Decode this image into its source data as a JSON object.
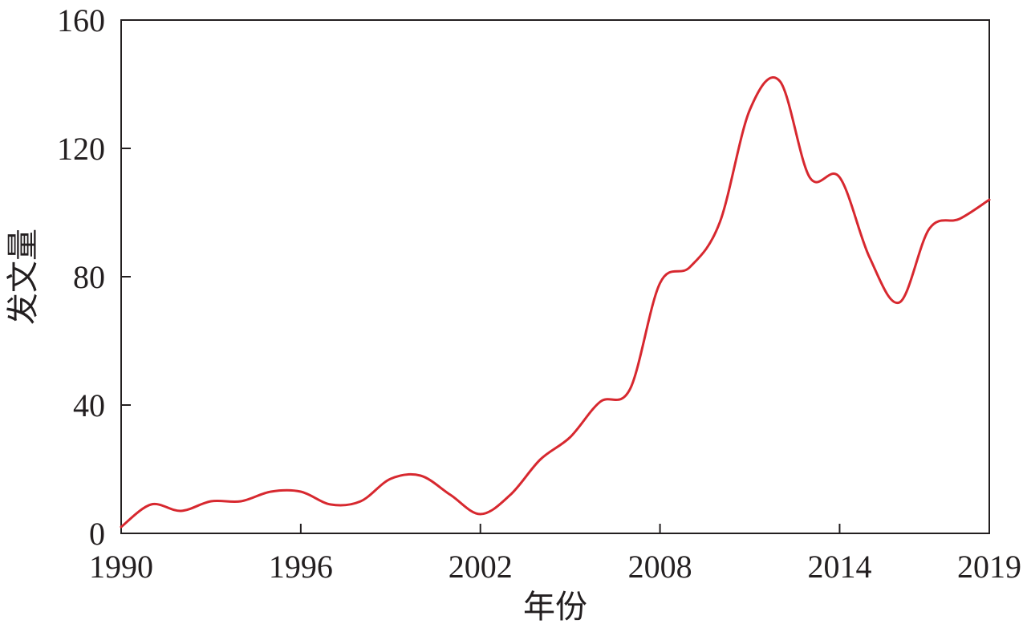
{
  "chart_data": {
    "type": "line",
    "xlabel": "年份",
    "ylabel": "发文量",
    "xlim": [
      1990,
      2019
    ],
    "ylim": [
      0,
      160
    ],
    "x_ticks": [
      1990,
      1996,
      2002,
      2008,
      2014,
      2019
    ],
    "y_ticks": [
      0,
      40,
      80,
      120,
      160
    ],
    "grid": false,
    "legend": "none",
    "series": [
      {
        "color": "#d7282f",
        "x": [
          1990,
          1991,
          1992,
          1993,
          1994,
          1995,
          1996,
          1997,
          1998,
          1999,
          2000,
          2001,
          2002,
          2003,
          2004,
          2005,
          2006,
          2007,
          2008,
          2009,
          2010,
          2011,
          2012,
          2013,
          2014,
          2015,
          2016,
          2017,
          2018,
          2019
        ],
        "y": [
          2,
          9,
          7,
          10,
          10,
          13,
          13,
          9,
          10,
          17,
          18,
          12,
          6,
          12,
          23,
          30,
          41,
          45,
          78,
          83,
          97,
          132,
          141,
          111,
          111,
          86,
          72,
          95,
          98,
          104
        ]
      }
    ]
  }
}
